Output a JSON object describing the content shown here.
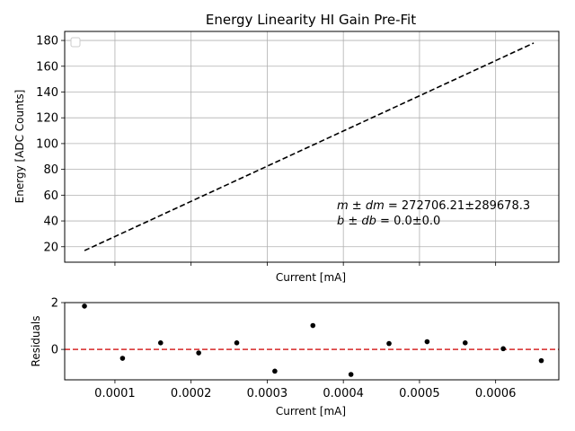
{
  "chart_data": [
    {
      "type": "line",
      "title": "Energy Linearity HI Gain Pre-Fit",
      "xlabel": "Current [mA]",
      "ylabel": "Energy [ADC Counts]",
      "xlim": [
        3.4e-05,
        0.000683
      ],
      "ylim": [
        8.0,
        187.0
      ],
      "yticks": [
        20,
        40,
        60,
        80,
        100,
        120,
        140,
        160,
        180
      ],
      "xticks": [
        0.0001,
        0.0002,
        0.0003,
        0.0004,
        0.0005,
        0.0006
      ],
      "show_x_tick_labels": false,
      "grid": true,
      "legend": "upper-left (empty)",
      "series": [
        {
          "style": "dashed",
          "color": "#000000",
          "x": [
            6e-05,
            0.00065
          ],
          "y": [
            17.0,
            178.0
          ]
        }
      ],
      "annotation": {
        "m_label": "m ± dm",
        "m_value": " = 272706.21±289678.3",
        "b_label": "b ± db",
        "b_value": " = 0.0±0.0"
      }
    },
    {
      "type": "scatter",
      "xlabel": "Current [mA]",
      "ylabel": "Residuals",
      "xlim": [
        3.4e-05,
        0.000683
      ],
      "ylim": [
        -1.3,
        2.0
      ],
      "yticks": [
        0,
        2
      ],
      "xticks": [
        0.0001,
        0.0002,
        0.0003,
        0.0004,
        0.0005,
        0.0006
      ],
      "xtick_labels": [
        "0.0001",
        "0.0002",
        "0.0003",
        "0.0004",
        "0.0005",
        "0.0006"
      ],
      "grid": false,
      "reference_line": {
        "y": 0,
        "color": "#d62728",
        "style": "dashed"
      },
      "points": {
        "color": "#000000",
        "x": [
          6e-05,
          0.00011,
          0.00016,
          0.00021,
          0.00026,
          0.00031,
          0.00036,
          0.00041,
          0.00046,
          0.00051,
          0.00056,
          0.00061,
          0.00066
        ],
        "y": [
          1.85,
          -0.38,
          0.28,
          -0.15,
          0.28,
          -0.93,
          1.02,
          -1.07,
          0.25,
          0.33,
          0.28,
          0.03,
          -0.48
        ]
      }
    }
  ]
}
